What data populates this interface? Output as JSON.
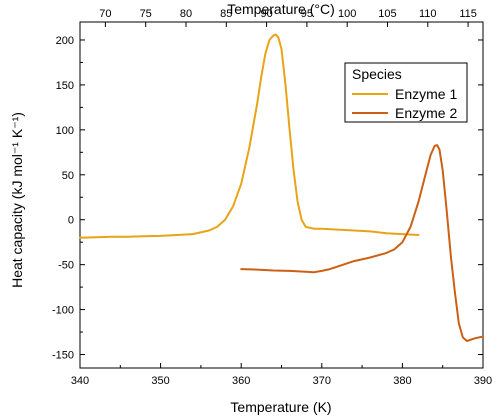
{
  "chart_data": {
    "type": "line",
    "xlabel": "Temperature (K)",
    "ylabel": "Heat capacity (kJ mol⁻¹ K⁻¹)",
    "top_xlabel": "Temperature (°C)",
    "xlim": [
      340,
      390
    ],
    "ylim": [
      -165,
      220
    ],
    "top_xlim_celsius": [
      66.85,
      116.85
    ],
    "x_ticks": [
      340,
      350,
      360,
      370,
      380,
      390
    ],
    "y_ticks": [
      -150,
      -100,
      -50,
      0,
      50,
      100,
      150,
      200
    ],
    "top_x_ticks": [
      70,
      75,
      80,
      85,
      90,
      95,
      100,
      105,
      110,
      115
    ],
    "grid": false,
    "legend_title": "Species",
    "legend_position": "top-right",
    "series": [
      {
        "name": "Enzyme 1",
        "color": "#E8A317",
        "x": [
          340,
          342,
          344,
          346,
          348,
          350,
          352,
          354,
          356,
          357,
          358,
          359,
          360,
          361,
          362,
          362.5,
          363,
          363.5,
          364,
          364.3,
          364.6,
          365,
          365.5,
          366,
          366.5,
          367,
          367.5,
          368,
          369,
          370,
          372,
          374,
          376,
          378,
          380,
          382
        ],
        "y": [
          -20,
          -19.5,
          -19,
          -19,
          -18.5,
          -18,
          -17,
          -16,
          -12,
          -8,
          0,
          15,
          40,
          80,
          130,
          160,
          185,
          200,
          205,
          206,
          203,
          190,
          150,
          100,
          55,
          20,
          0,
          -8,
          -10,
          -10,
          -11,
          -12,
          -13,
          -15,
          -16,
          -17
        ]
      },
      {
        "name": "Enzyme 2",
        "color": "#CC6014",
        "x": [
          360,
          362,
          364,
          366,
          368,
          369,
          370,
          371,
          372,
          374,
          376,
          378,
          379,
          380,
          381,
          382,
          383,
          383.5,
          384,
          384.3,
          384.6,
          385,
          385.5,
          386,
          386.5,
          387,
          387.5,
          388,
          389,
          390
        ],
        "y": [
          -55,
          -55.5,
          -56.5,
          -57,
          -58,
          -58.5,
          -57,
          -55,
          -52,
          -46,
          -42,
          -37,
          -33,
          -25,
          -8,
          20,
          55,
          72,
          82,
          83,
          78,
          55,
          10,
          -40,
          -80,
          -115,
          -131,
          -135,
          -132,
          -130
        ]
      }
    ]
  }
}
